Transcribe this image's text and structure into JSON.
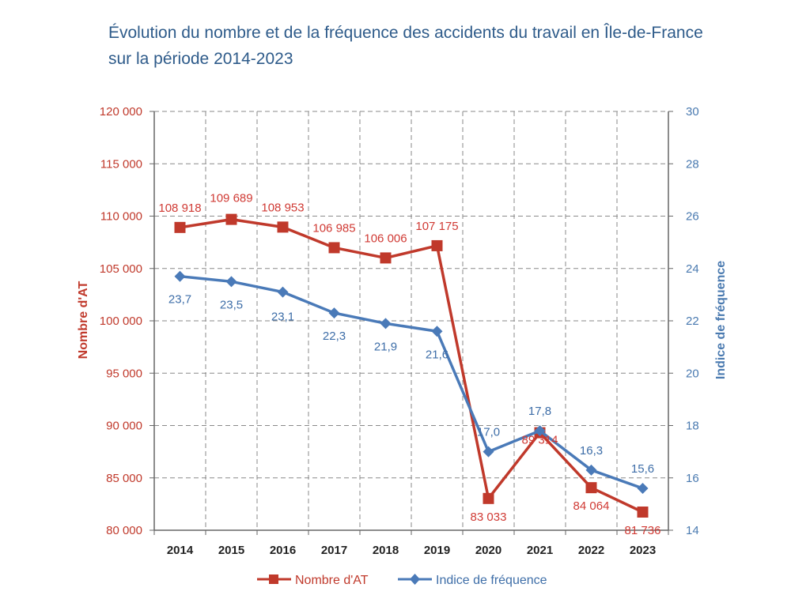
{
  "chart_data": {
    "type": "line",
    "title_lines": [
      "Évolution du nombre et de la fréquence des accidents du travail en Île-de-France",
      "sur la période 2014-2023"
    ],
    "categories": [
      "2014",
      "2015",
      "2016",
      "2017",
      "2018",
      "2019",
      "2020",
      "2021",
      "2022",
      "2023"
    ],
    "y_left": {
      "label": "Nombre d'AT",
      "ylim": [
        80000,
        120000
      ],
      "ticks": [
        80000,
        85000,
        90000,
        95000,
        100000,
        105000,
        110000,
        115000,
        120000
      ],
      "tick_labels": [
        "80 000",
        "85 000",
        "90 000",
        "95 000",
        "100 000",
        "105 000",
        "110 000",
        "115 000",
        "120 000"
      ]
    },
    "y_right": {
      "label": "Indice de fréquence",
      "ylim": [
        14,
        30
      ],
      "ticks": [
        14,
        16,
        18,
        20,
        22,
        24,
        26,
        28,
        30
      ],
      "tick_labels": [
        "14",
        "16",
        "18",
        "20",
        "22",
        "24",
        "26",
        "28",
        "30"
      ]
    },
    "grid": true,
    "legend_position": "bottom",
    "series": [
      {
        "name": "Nombre d'AT",
        "axis": "left",
        "color": "#c0392b",
        "marker": "square",
        "values": [
          108918,
          109689,
          108953,
          106985,
          106006,
          107175,
          83033,
          89314,
          84064,
          81736
        ],
        "labels": [
          "108 918",
          "109 689",
          "108 953",
          "106 985",
          "106 006",
          "107 175",
          "83 033",
          "89 314",
          "84 064",
          "81 736"
        ]
      },
      {
        "name": "Indice de fréquence",
        "axis": "right",
        "color": "#4a7ab8",
        "marker": "diamond",
        "values": [
          23.7,
          23.5,
          23.1,
          22.3,
          21.9,
          21.6,
          17.0,
          17.8,
          16.3,
          15.6
        ],
        "labels": [
          "23,7",
          "23,5",
          "23,1",
          "22,3",
          "21,9",
          "21,6",
          "17,0",
          "17,8",
          "16,3",
          "15,6"
        ]
      }
    ]
  }
}
